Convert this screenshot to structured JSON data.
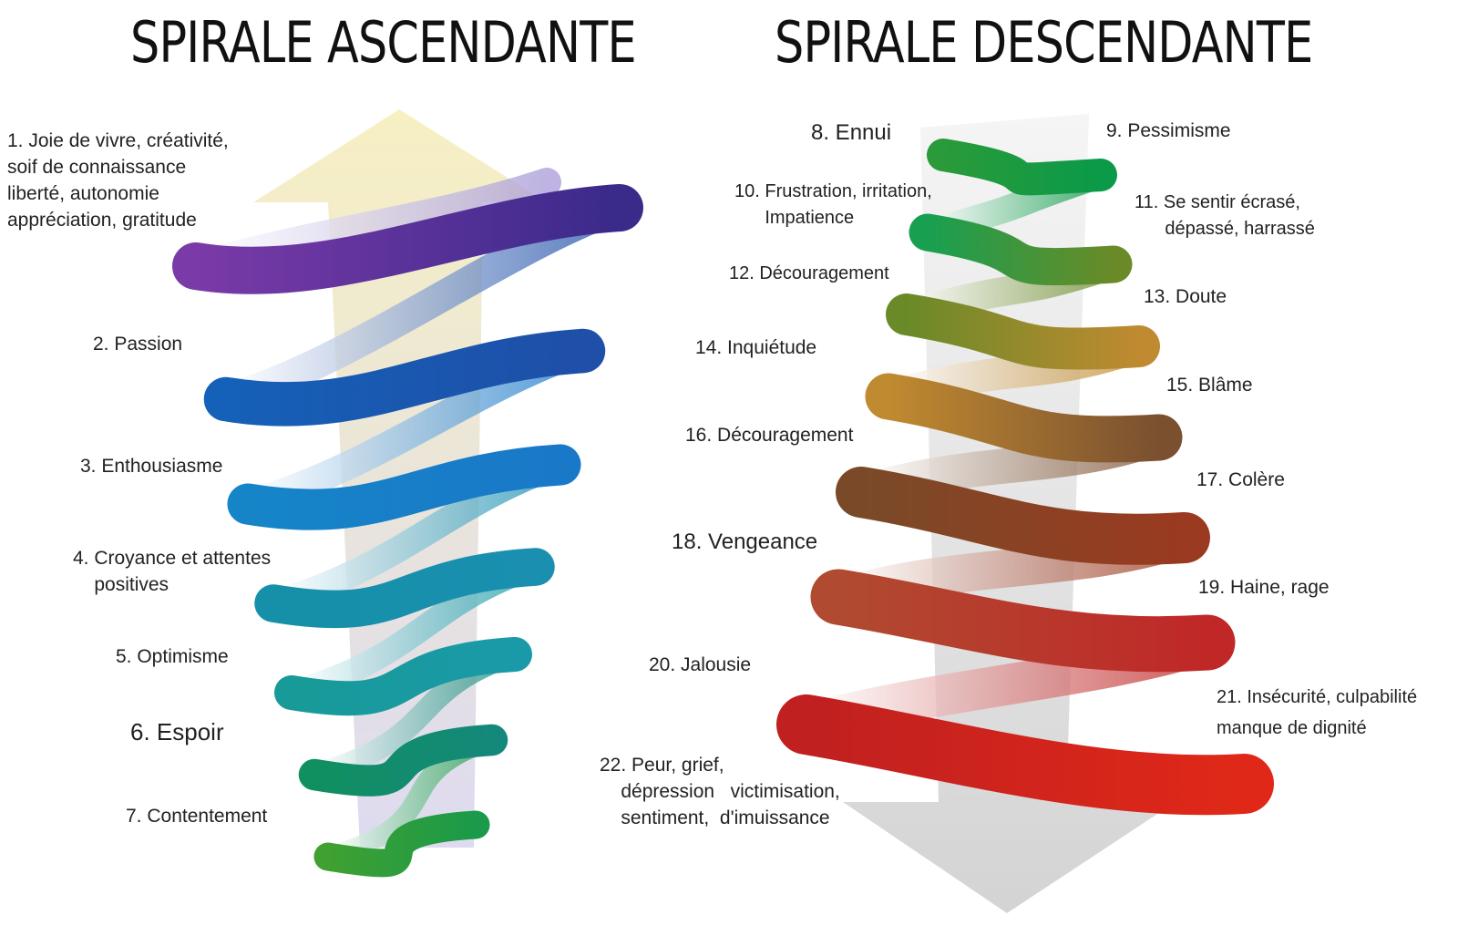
{
  "titles": {
    "ascending": "SPIRALE ASCENDANTE",
    "descending": "SPIRALE DESCENDANTE"
  },
  "ascending_labels": [
    "1. Joie de vivre, créativité,\nsoif de connaissance\nliberté, autonomie\nappréciation, gratitude",
    "2. Passion",
    "3. Enthousiasme",
    "4. Croyance et attentes\n    positives",
    "5. Optimisme",
    "6. Espoir",
    "7. Contentement"
  ],
  "descending_labels": [
    "8. Ennui",
    "9. Pessimisme",
    "10. Frustration, irritation,\n      Impatience",
    "11. Se sentir écrasé,\n      dépassé, harrassé",
    "12. Découragement",
    "13. Doute",
    "14. Inquiétude",
    "15. Blâme",
    "16. Découragement",
    "17. Colère",
    "18. Vengeance",
    "19. Haine, rage",
    "20. Jalousie",
    "21. Insécurité, culpabilité\nmanque de dignité",
    "22. Peur, grief,\n    dépression   victimisation,\n    sentiment,  d'imuissance"
  ],
  "colors": {
    "ascending_coils": [
      "#3a2a8a",
      "#1f4fa8",
      "#1a78c8",
      "#1a8fb0",
      "#1a9aa8",
      "#14887a",
      "#1a9a4a",
      "#5a9a2a"
    ],
    "ascending_left": [
      "#7a3aa8",
      "#1560b8",
      "#1585c8",
      "#1590a8",
      "#189a98",
      "#109060",
      "#40a030"
    ],
    "descending_left": [
      "#2a9a3a",
      "#18a050",
      "#6a8a28",
      "#c08a30",
      "#7a4a28",
      "#b04a30",
      "#c02020"
    ],
    "descending_right": [
      "#0a9a48",
      "#6a8a28",
      "#c08a30",
      "#7a5030",
      "#9a3a20",
      "#c02828",
      "#e02818"
    ],
    "arrow_up": "#f5edb8",
    "arrow_down": "#cfcfcf"
  }
}
